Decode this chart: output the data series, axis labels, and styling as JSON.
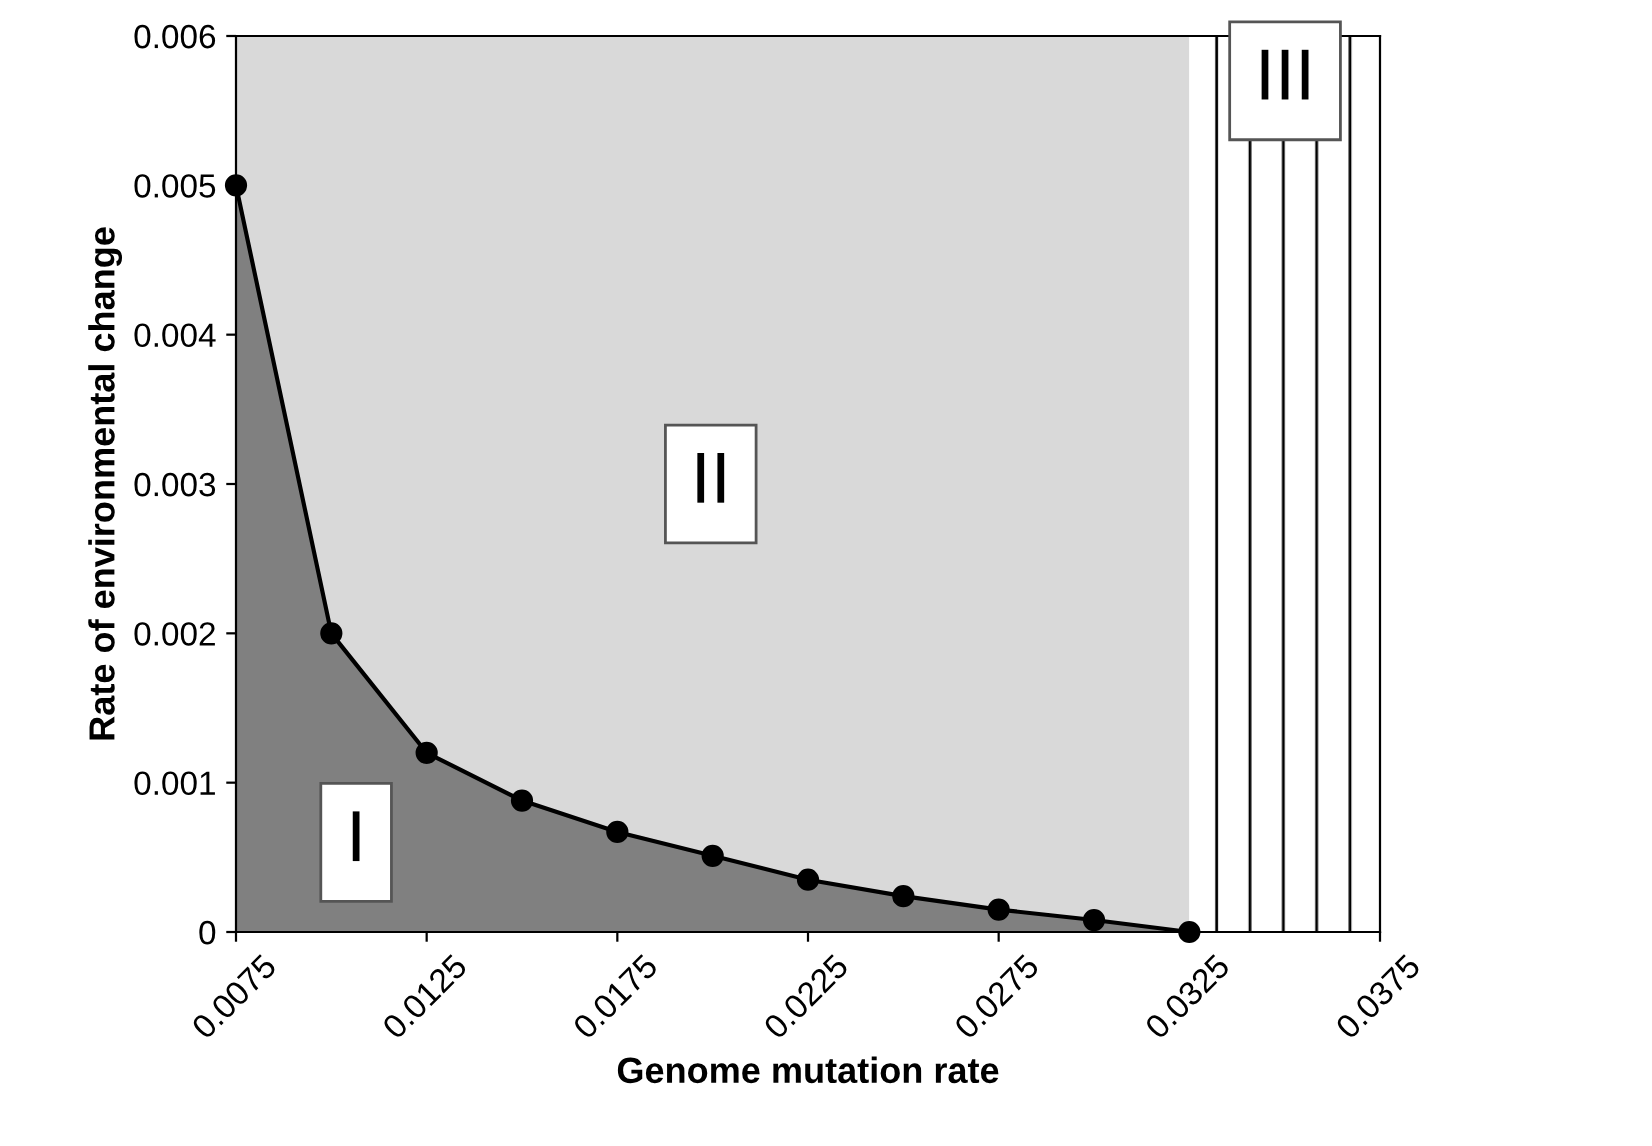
{
  "chart_data": {
    "type": "area",
    "xlabel": "Genome mutation rate",
    "ylabel": "Rate of environmental change",
    "series": [
      {
        "color": "#808080",
        "x": [
          0.0075,
          0.01,
          0.0125,
          0.015,
          0.0175,
          0.02,
          0.0225,
          0.025,
          0.0275,
          0.03,
          0.0325
        ],
        "values": [
          0.005,
          0.002,
          0.0012,
          0.00088,
          0.00067,
          0.00051,
          0.00035,
          0.00024,
          0.00015,
          8e-05,
          0
        ]
      }
    ],
    "marker": "circle",
    "line_style": "solid",
    "bands": [
      {
        "axis": "x",
        "from": 0.0075,
        "to": 0.0325,
        "color": "#d9d9d9"
      },
      {
        "axis": "x",
        "from": 0.0325,
        "to": 0.0375,
        "color": "#ffffff"
      }
    ],
    "annotations": [
      "I",
      "II",
      "III"
    ],
    "xlim": [
      0.0075,
      0.0375
    ],
    "xticks": [
      0.0075,
      0.0125,
      0.0175,
      0.0225,
      0.0275,
      0.0325,
      0.0375
    ],
    "ylim": [
      0,
      0.006
    ],
    "yticks": [
      0,
      0.001,
      0.002,
      0.003,
      0.004,
      0.005,
      0.006
    ],
    "grid": false,
    "legend": false
  }
}
